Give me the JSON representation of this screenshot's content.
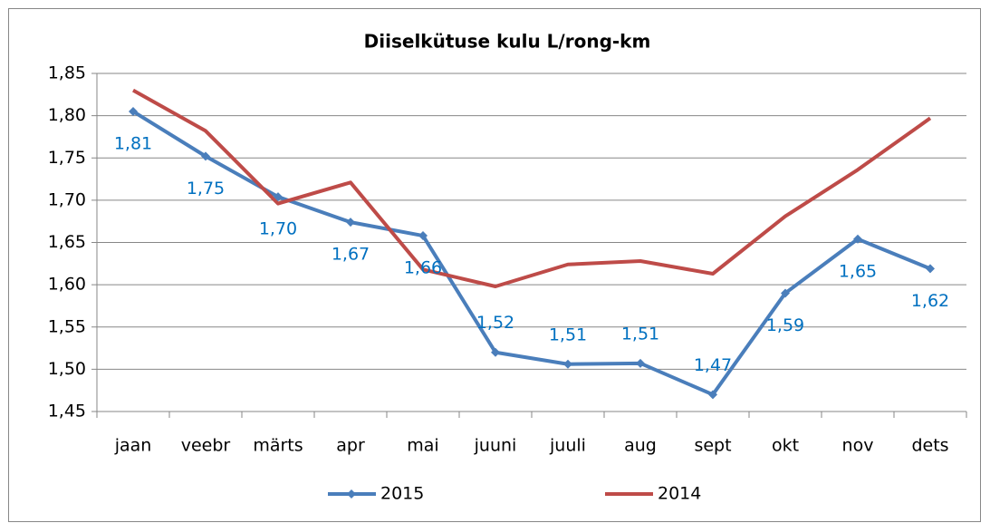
{
  "chart_data": {
    "type": "line",
    "title": "Diiselkütuse kulu L/rong-km",
    "categories": [
      "jaan",
      "veebr",
      "märts",
      "apr",
      "mai",
      "juuni",
      "juuli",
      "aug",
      "sept",
      "okt",
      "nov",
      "dets"
    ],
    "series": [
      {
        "name": "2015",
        "color": "#4a7ebb",
        "marker": "diamond",
        "values": [
          1.805,
          1.752,
          1.704,
          1.674,
          1.658,
          1.52,
          1.506,
          1.507,
          1.47,
          1.59,
          1.654,
          1.619
        ],
        "value_labels": [
          "1,81",
          "1,75",
          "1,70",
          "1,67",
          "1,66",
          "1,52",
          "1,51",
          "1,51",
          "1,47",
          "1,59",
          "1,65",
          "1,62"
        ],
        "label_color": "#0070c0"
      },
      {
        "name": "2014",
        "color": "#be4b48",
        "values": [
          1.83,
          1.782,
          1.696,
          1.721,
          1.618,
          1.598,
          1.624,
          1.628,
          1.613,
          1.681,
          1.736,
          1.797
        ]
      }
    ],
    "ylim": [
      1.45,
      1.85
    ],
    "yticks": [
      {
        "value": 1.45,
        "label": "1,45"
      },
      {
        "value": 1.5,
        "label": "1,50"
      },
      {
        "value": 1.55,
        "label": "1,55"
      },
      {
        "value": 1.6,
        "label": "1,60"
      },
      {
        "value": 1.65,
        "label": "1,65"
      },
      {
        "value": 1.7,
        "label": "1,70"
      },
      {
        "value": 1.75,
        "label": "1,75"
      },
      {
        "value": 1.8,
        "label": "1,80"
      },
      {
        "value": 1.85,
        "label": "1,85"
      }
    ],
    "grid": true,
    "legend": "bottom"
  }
}
